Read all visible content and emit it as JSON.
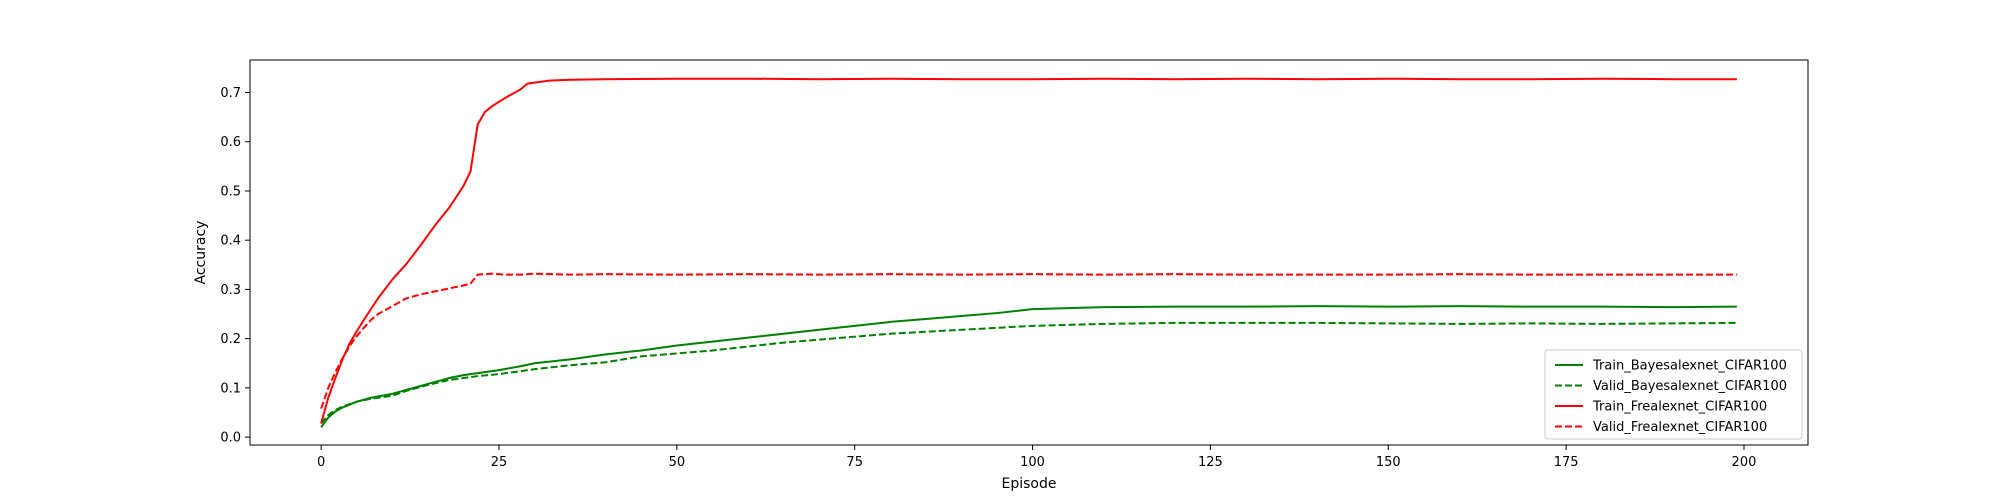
{
  "chart_data": {
    "type": "line",
    "title": "",
    "xlabel": "Episode",
    "ylabel": "Accuracy",
    "xlim": [
      -10,
      209
    ],
    "ylim": [
      -0.016,
      0.766
    ],
    "xticks": [
      0,
      25,
      50,
      75,
      100,
      125,
      150,
      175,
      200
    ],
    "yticks": [
      0.0,
      0.1,
      0.2,
      0.3,
      0.4,
      0.5,
      0.6,
      0.7
    ],
    "grid": false,
    "legend_position": "lower-right",
    "series": [
      {
        "name": "Train_Bayesalexnet_CIFAR100",
        "color": "#008000",
        "style": "solid",
        "points": [
          [
            0,
            0.02
          ],
          [
            1,
            0.04
          ],
          [
            2,
            0.052
          ],
          [
            3,
            0.06
          ],
          [
            5,
            0.072
          ],
          [
            7,
            0.08
          ],
          [
            10,
            0.088
          ],
          [
            12,
            0.096
          ],
          [
            15,
            0.108
          ],
          [
            18,
            0.12
          ],
          [
            20,
            0.126
          ],
          [
            22,
            0.13
          ],
          [
            25,
            0.136
          ],
          [
            28,
            0.144
          ],
          [
            30,
            0.15
          ],
          [
            35,
            0.158
          ],
          [
            40,
            0.168
          ],
          [
            45,
            0.176
          ],
          [
            50,
            0.186
          ],
          [
            55,
            0.194
          ],
          [
            60,
            0.202
          ],
          [
            65,
            0.21
          ],
          [
            70,
            0.218
          ],
          [
            75,
            0.226
          ],
          [
            80,
            0.234
          ],
          [
            85,
            0.24
          ],
          [
            90,
            0.246
          ],
          [
            95,
            0.252
          ],
          [
            100,
            0.26
          ],
          [
            105,
            0.262
          ],
          [
            110,
            0.264
          ],
          [
            120,
            0.265
          ],
          [
            130,
            0.265
          ],
          [
            140,
            0.266
          ],
          [
            150,
            0.265
          ],
          [
            160,
            0.266
          ],
          [
            170,
            0.265
          ],
          [
            180,
            0.265
          ],
          [
            190,
            0.264
          ],
          [
            199,
            0.265
          ]
        ]
      },
      {
        "name": "Valid_Bayesalexnet_CIFAR100",
        "color": "#008000",
        "style": "dashed",
        "points": [
          [
            0,
            0.028
          ],
          [
            1,
            0.045
          ],
          [
            2,
            0.055
          ],
          [
            3,
            0.062
          ],
          [
            5,
            0.072
          ],
          [
            7,
            0.078
          ],
          [
            10,
            0.084
          ],
          [
            12,
            0.094
          ],
          [
            15,
            0.106
          ],
          [
            18,
            0.116
          ],
          [
            20,
            0.12
          ],
          [
            22,
            0.124
          ],
          [
            25,
            0.128
          ],
          [
            28,
            0.134
          ],
          [
            30,
            0.138
          ],
          [
            35,
            0.146
          ],
          [
            40,
            0.152
          ],
          [
            45,
            0.164
          ],
          [
            50,
            0.17
          ],
          [
            55,
            0.176
          ],
          [
            60,
            0.184
          ],
          [
            65,
            0.192
          ],
          [
            70,
            0.198
          ],
          [
            75,
            0.204
          ],
          [
            80,
            0.21
          ],
          [
            85,
            0.214
          ],
          [
            90,
            0.218
          ],
          [
            95,
            0.222
          ],
          [
            100,
            0.226
          ],
          [
            105,
            0.228
          ],
          [
            110,
            0.23
          ],
          [
            120,
            0.232
          ],
          [
            130,
            0.232
          ],
          [
            140,
            0.232
          ],
          [
            150,
            0.231
          ],
          [
            160,
            0.23
          ],
          [
            170,
            0.231
          ],
          [
            180,
            0.23
          ],
          [
            190,
            0.231
          ],
          [
            199,
            0.232
          ]
        ]
      },
      {
        "name": "Train_Frealexnet_CIFAR100",
        "color": "#ff0000",
        "style": "solid",
        "points": [
          [
            0,
            0.028
          ],
          [
            1,
            0.08
          ],
          [
            2,
            0.12
          ],
          [
            3,
            0.158
          ],
          [
            4,
            0.19
          ],
          [
            5,
            0.215
          ],
          [
            6,
            0.238
          ],
          [
            7,
            0.26
          ],
          [
            8,
            0.282
          ],
          [
            10,
            0.32
          ],
          [
            12,
            0.352
          ],
          [
            14,
            0.39
          ],
          [
            16,
            0.43
          ],
          [
            18,
            0.466
          ],
          [
            20,
            0.51
          ],
          [
            21,
            0.54
          ],
          [
            22,
            0.635
          ],
          [
            23,
            0.66
          ],
          [
            24,
            0.672
          ],
          [
            26,
            0.69
          ],
          [
            28,
            0.706
          ],
          [
            29,
            0.718
          ],
          [
            30,
            0.72
          ],
          [
            32,
            0.724
          ],
          [
            35,
            0.726
          ],
          [
            40,
            0.727
          ],
          [
            50,
            0.728
          ],
          [
            60,
            0.728
          ],
          [
            70,
            0.727
          ],
          [
            80,
            0.728
          ],
          [
            90,
            0.727
          ],
          [
            100,
            0.727
          ],
          [
            110,
            0.728
          ],
          [
            120,
            0.727
          ],
          [
            130,
            0.728
          ],
          [
            140,
            0.727
          ],
          [
            150,
            0.728
          ],
          [
            160,
            0.727
          ],
          [
            170,
            0.727
          ],
          [
            180,
            0.728
          ],
          [
            190,
            0.727
          ],
          [
            199,
            0.727
          ]
        ]
      },
      {
        "name": "Valid_Frealexnet_CIFAR100",
        "color": "#ff0000",
        "style": "dashed",
        "points": [
          [
            0,
            0.058
          ],
          [
            1,
            0.1
          ],
          [
            2,
            0.132
          ],
          [
            3,
            0.16
          ],
          [
            4,
            0.185
          ],
          [
            5,
            0.205
          ],
          [
            6,
            0.222
          ],
          [
            7,
            0.238
          ],
          [
            8,
            0.25
          ],
          [
            10,
            0.266
          ],
          [
            12,
            0.282
          ],
          [
            14,
            0.29
          ],
          [
            16,
            0.296
          ],
          [
            18,
            0.302
          ],
          [
            20,
            0.308
          ],
          [
            21,
            0.312
          ],
          [
            22,
            0.33
          ],
          [
            24,
            0.332
          ],
          [
            26,
            0.33
          ],
          [
            28,
            0.33
          ],
          [
            30,
            0.332
          ],
          [
            35,
            0.33
          ],
          [
            40,
            0.331
          ],
          [
            50,
            0.33
          ],
          [
            60,
            0.331
          ],
          [
            70,
            0.33
          ],
          [
            80,
            0.331
          ],
          [
            90,
            0.33
          ],
          [
            100,
            0.331
          ],
          [
            110,
            0.33
          ],
          [
            120,
            0.331
          ],
          [
            130,
            0.33
          ],
          [
            140,
            0.33
          ],
          [
            150,
            0.33
          ],
          [
            160,
            0.331
          ],
          [
            170,
            0.33
          ],
          [
            180,
            0.33
          ],
          [
            190,
            0.33
          ],
          [
            199,
            0.33
          ]
        ]
      }
    ]
  }
}
